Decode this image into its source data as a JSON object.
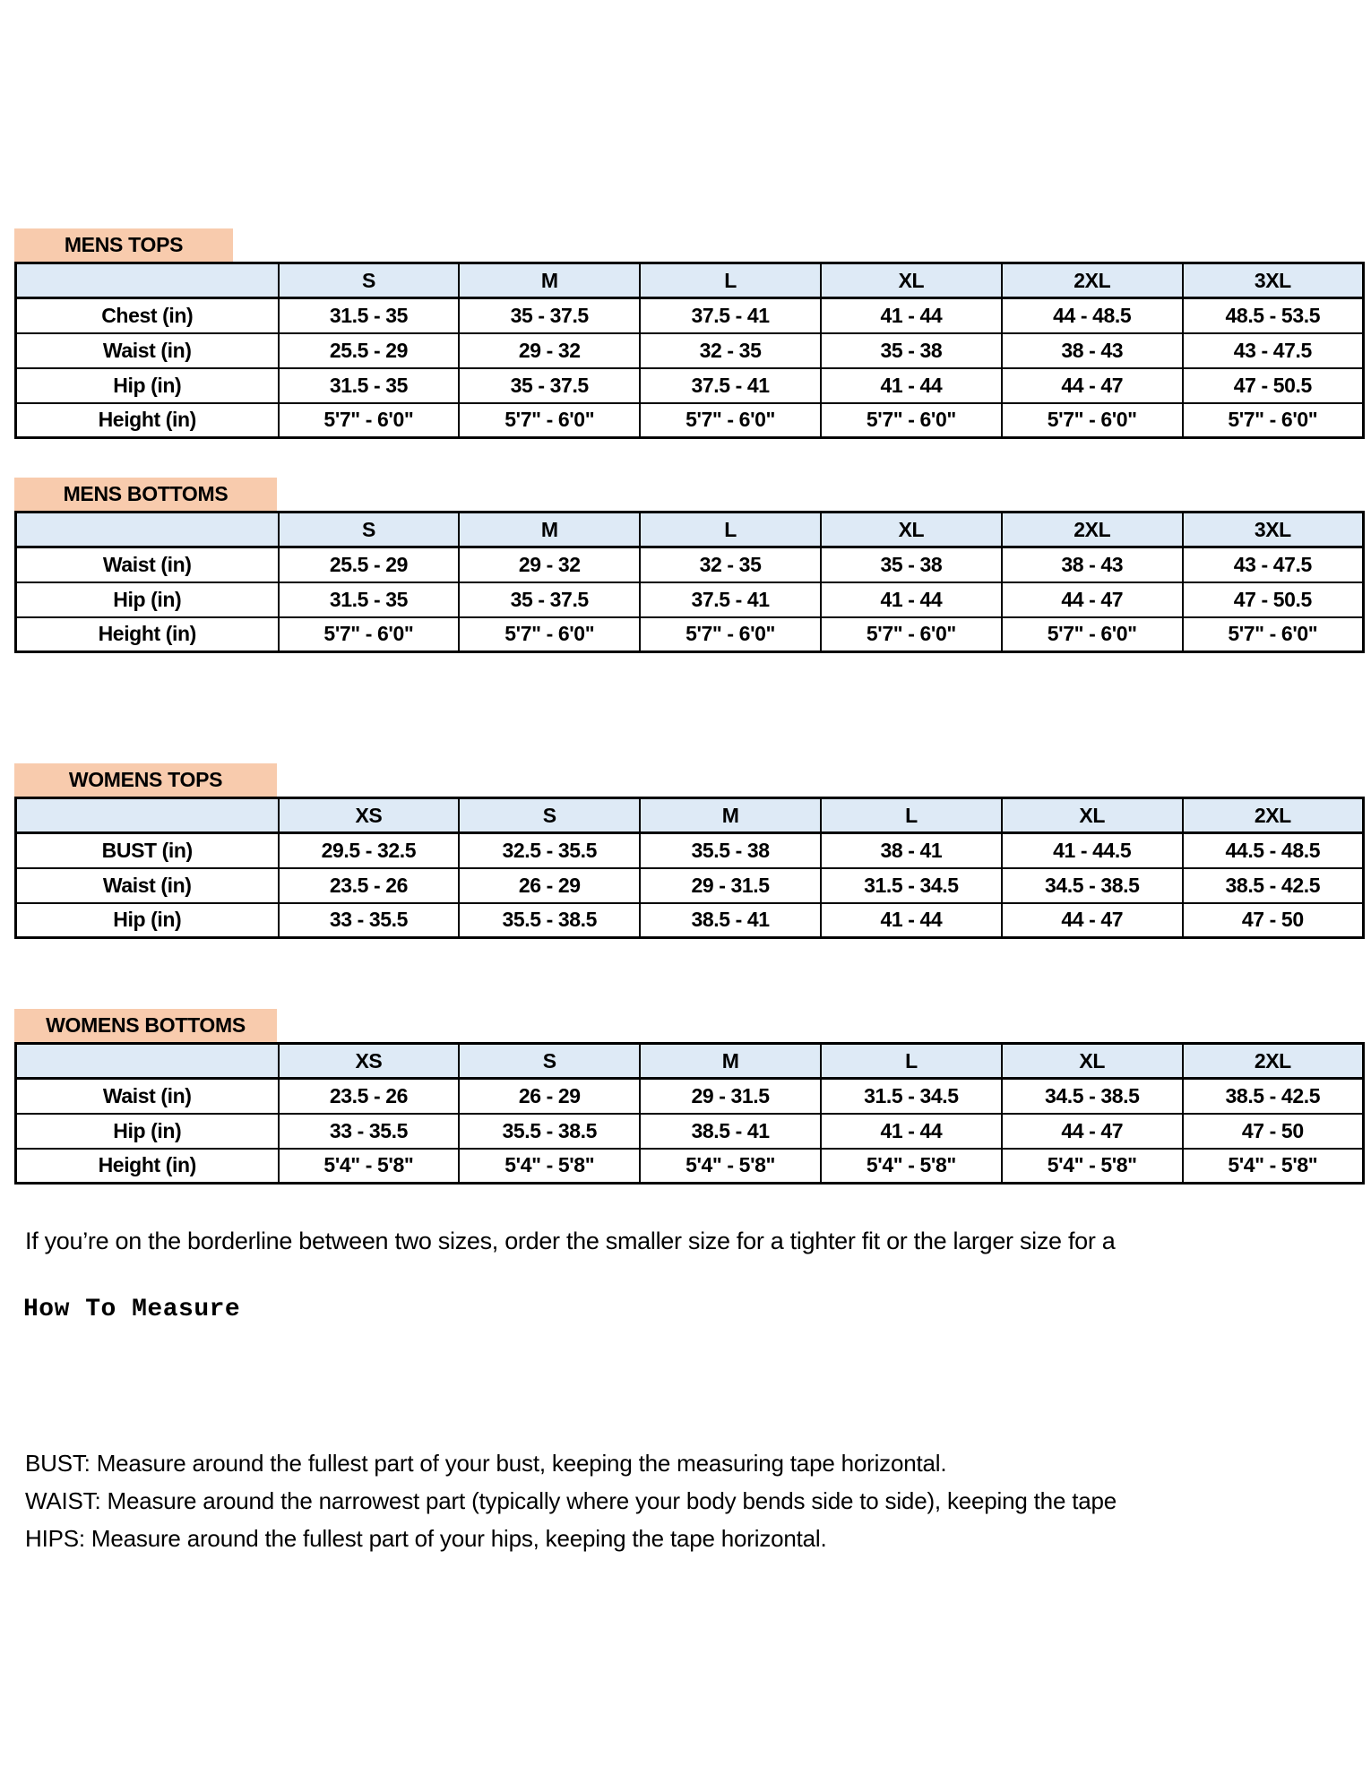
{
  "colors": {
    "label_bg": "#F8CBAD",
    "header_bg": "#DEEAF6",
    "border": "#000000",
    "text": "#000000",
    "page_bg": "#FFFFFF"
  },
  "tables": [
    {
      "title": "MENS TOPS",
      "columns": [
        "S",
        "M",
        "L",
        "XL",
        "2XL",
        "3XL"
      ],
      "rows": [
        {
          "label": "Chest (in)",
          "values": [
            "31.5 - 35",
            "35 - 37.5",
            "37.5 - 41",
            "41 - 44",
            "44 - 48.5",
            "48.5 - 53.5"
          ]
        },
        {
          "label": "Waist (in)",
          "values": [
            "25.5 - 29",
            "29 - 32",
            "32 - 35",
            "35 - 38",
            "38 - 43",
            "43 - 47.5"
          ]
        },
        {
          "label": "Hip (in)",
          "values": [
            "31.5 - 35",
            "35 - 37.5",
            "37.5 - 41",
            "41 - 44",
            "44 - 47",
            "47 - 50.5"
          ]
        },
        {
          "label": "Height (in)",
          "values": [
            "5'7\" - 6'0\"",
            "5'7\" - 6'0\"",
            "5'7\" - 6'0\"",
            "5'7\" - 6'0\"",
            "5'7\" - 6'0\"",
            "5'7\" - 6'0\""
          ]
        }
      ]
    },
    {
      "title": "MENS BOTTOMS",
      "columns": [
        "S",
        "M",
        "L",
        "XL",
        "2XL",
        "3XL"
      ],
      "rows": [
        {
          "label": "Waist (in)",
          "values": [
            "25.5 - 29",
            "29 - 32",
            "32 - 35",
            "35 - 38",
            "38 - 43",
            "43 - 47.5"
          ]
        },
        {
          "label": "Hip (in)",
          "values": [
            "31.5 - 35",
            "35 - 37.5",
            "37.5 - 41",
            "41 - 44",
            "44 - 47",
            "47 - 50.5"
          ]
        },
        {
          "label": "Height (in)",
          "values": [
            "5'7\" - 6'0\"",
            "5'7\" - 6'0\"",
            "5'7\" - 6'0\"",
            "5'7\" - 6'0\"",
            "5'7\" - 6'0\"",
            "5'7\" - 6'0\""
          ]
        }
      ]
    },
    {
      "title": "WOMENS TOPS",
      "columns": [
        "XS",
        "S",
        "M",
        "L",
        "XL",
        "2XL"
      ],
      "rows": [
        {
          "label": "BUST (in)",
          "values": [
            "29.5 - 32.5",
            "32.5 - 35.5",
            "35.5 - 38",
            "38 - 41",
            "41 - 44.5",
            "44.5 - 48.5"
          ]
        },
        {
          "label": "Waist (in)",
          "values": [
            "23.5 - 26",
            "26 - 29",
            "29 - 31.5",
            "31.5 - 34.5",
            "34.5 - 38.5",
            "38.5 - 42.5"
          ]
        },
        {
          "label": "Hip (in)",
          "values": [
            "33 - 35.5",
            "35.5 - 38.5",
            "38.5 - 41",
            "41 - 44",
            "44 - 47",
            "47 - 50"
          ]
        }
      ]
    },
    {
      "title": "WOMENS BOTTOMS",
      "columns": [
        "XS",
        "S",
        "M",
        "L",
        "XL",
        "2XL"
      ],
      "rows": [
        {
          "label": "Waist (in)",
          "values": [
            "23.5 - 26",
            "26 - 29",
            "29 - 31.5",
            "31.5 - 34.5",
            "34.5 - 38.5",
            "38.5 - 42.5"
          ]
        },
        {
          "label": "Hip (in)",
          "values": [
            "33 - 35.5",
            "35.5 - 38.5",
            "38.5 - 41",
            "41 - 44",
            "44 - 47",
            "47 - 50"
          ]
        },
        {
          "label": "Height (in)",
          "values": [
            "5'4\" - 5'8\"",
            "5'4\" - 5'8\"",
            "5'4\" - 5'8\"",
            "5'4\" - 5'8\"",
            "5'4\" - 5'8\"",
            "5'4\" - 5'8\""
          ]
        }
      ]
    }
  ],
  "notes": {
    "fit_note": "If you’re on the borderline between two sizes, order the smaller size for a tighter fit or the larger size for a",
    "how_to_measure_title": "How To Measure",
    "measure_lines": [
      "BUST: Measure around the fullest part of your bust, keeping the measuring tape horizontal.",
      "WAIST: Measure around the narrowest part (typically where your body bends side to side), keeping the tape",
      "HIPS: Measure around the fullest part of your hips, keeping the tape horizontal."
    ]
  }
}
